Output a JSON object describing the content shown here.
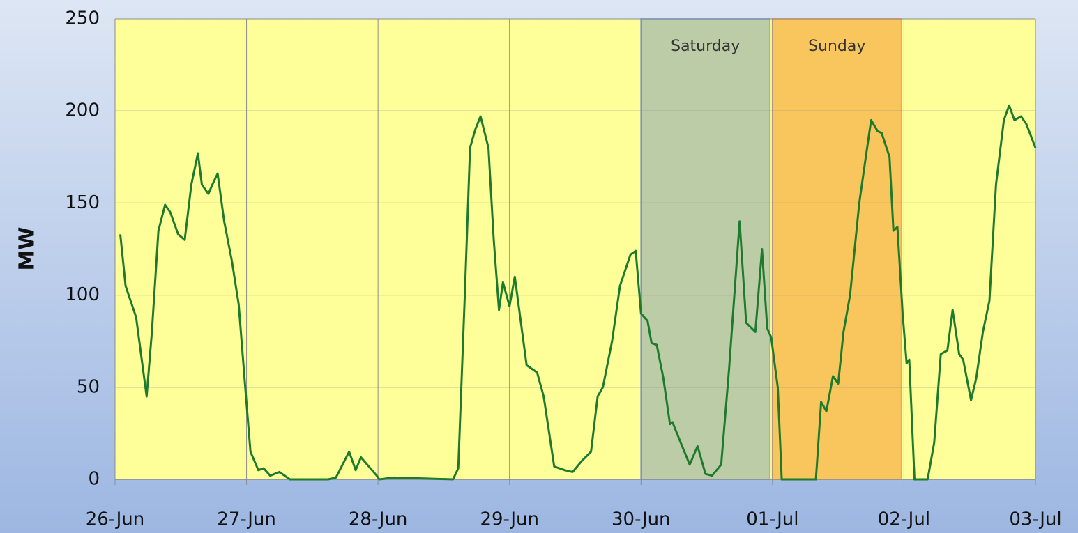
{
  "chart_data": {
    "type": "line",
    "ylabel": "MW",
    "color": "#1e7b2e",
    "plot_background": "#ffff99",
    "grid": true,
    "x": [
      0.04,
      0.08,
      0.16,
      0.24,
      0.28,
      0.33,
      0.38,
      0.42,
      0.48,
      0.53,
      0.58,
      0.63,
      0.66,
      0.71,
      0.74,
      0.78,
      0.83,
      0.89,
      0.94,
      0.99,
      1.03,
      1.09,
      1.13,
      1.18,
      1.25,
      1.33,
      1.62,
      1.68,
      1.78,
      1.83,
      1.87,
      1.99,
      2.01,
      2.12,
      2.57,
      2.61,
      2.66,
      2.7,
      2.74,
      2.78,
      2.84,
      2.88,
      2.92,
      2.95,
      3.0,
      3.04,
      3.13,
      3.21,
      3.26,
      3.34,
      3.42,
      3.48,
      3.55,
      3.62,
      3.67,
      3.71,
      3.78,
      3.84,
      3.92,
      3.96,
      4.0,
      4.05,
      4.08,
      4.12,
      4.17,
      4.22,
      4.24,
      4.29,
      4.37,
      4.43,
      4.49,
      4.54,
      4.61,
      4.67,
      4.75,
      4.8,
      4.87,
      4.92,
      4.96,
      4.99,
      5.04,
      5.07,
      5.33,
      5.37,
      5.41,
      5.46,
      5.5,
      5.54,
      5.59,
      5.66,
      5.71,
      5.75,
      5.8,
      5.83,
      5.89,
      5.92,
      5.95,
      5.99,
      6.02,
      6.04,
      6.08,
      6.18,
      6.23,
      6.28,
      6.33,
      6.37,
      6.42,
      6.45,
      6.51,
      6.55,
      6.6,
      6.65,
      6.7,
      6.76,
      6.8,
      6.84,
      6.89,
      6.93,
      7.0
    ],
    "values": [
      133,
      105,
      88,
      45,
      80,
      135,
      149,
      145,
      133,
      130,
      160,
      177,
      160,
      155,
      160,
      166,
      140,
      118,
      95,
      50,
      15,
      5,
      6,
      2,
      4,
      0,
      0,
      1,
      15,
      5,
      12,
      2,
      0,
      1,
      0,
      6,
      100,
      180,
      190,
      197,
      180,
      130,
      92,
      107,
      94,
      110,
      62,
      58,
      45,
      7,
      5,
      4,
      10,
      15,
      45,
      50,
      75,
      105,
      122,
      124,
      90,
      86,
      74,
      73,
      55,
      30,
      31,
      22,
      8,
      18,
      3,
      2,
      8,
      60,
      140,
      85,
      80,
      125,
      82,
      77,
      50,
      0,
      0,
      42,
      37,
      56,
      52,
      80,
      100,
      150,
      175,
      195,
      189,
      188,
      175,
      135,
      137,
      90,
      63,
      65,
      0,
      0,
      20,
      68,
      70,
      92,
      68,
      65,
      43,
      55,
      80,
      97,
      160,
      195,
      203,
      195,
      197,
      193,
      180
    ],
    "xlim": [
      0,
      7
    ],
    "xticks": [
      {
        "value": 0,
        "label": "26-Jun"
      },
      {
        "value": 1,
        "label": "27-Jun"
      },
      {
        "value": 2,
        "label": "28-Jun"
      },
      {
        "value": 3,
        "label": "29-Jun"
      },
      {
        "value": 4,
        "label": "30-Jun"
      },
      {
        "value": 5,
        "label": "01-Jul"
      },
      {
        "value": 6,
        "label": "02-Jul"
      },
      {
        "value": 7,
        "label": "03-Jul"
      }
    ],
    "ylim": [
      0,
      250
    ],
    "yticks": [
      0,
      50,
      100,
      150,
      200,
      250
    ],
    "regions": [
      {
        "label": "Saturday",
        "x0": 4,
        "x1": 4.98,
        "color": "#bccca6",
        "border": "#8fb0d8"
      },
      {
        "label": "Sunday",
        "x0": 5.0,
        "x1": 5.98,
        "color": "#f9c65e",
        "border": "#f0a860"
      }
    ]
  }
}
